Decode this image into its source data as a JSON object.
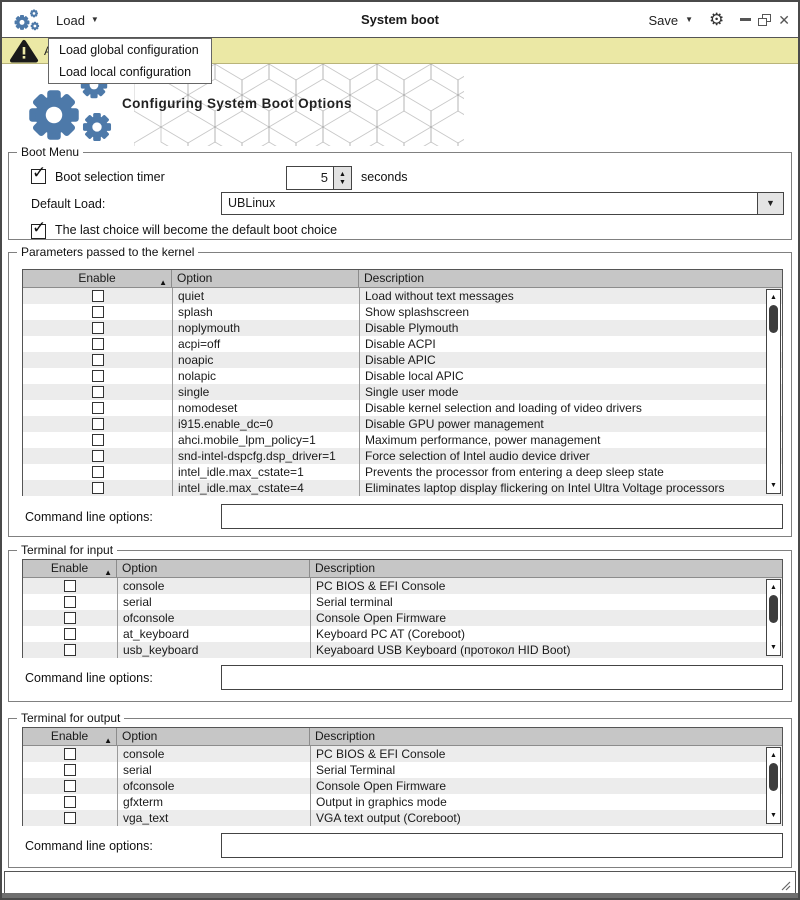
{
  "titlebar": {
    "load_label": "Load",
    "title": "System boot",
    "save_label": "Save"
  },
  "load_menu": {
    "items": [
      {
        "label": "Load global configuration"
      },
      {
        "label": "Load local configuration"
      }
    ]
  },
  "alert_bar": {
    "visible_text": "A"
  },
  "hero": {
    "title": "Configuring System Boot Options"
  },
  "boot_menu": {
    "legend": "Boot Menu",
    "timer": {
      "label": "Boot selection timer",
      "checked": true,
      "value": "5",
      "unit": "seconds"
    },
    "default_load": {
      "label": "Default Load:",
      "value": "UBLinux"
    },
    "last_choice": {
      "label": "The last choice will become the default boot choice",
      "checked": true
    }
  },
  "kernel_params": {
    "legend": "Parameters passed to the kernel",
    "columns": {
      "enable": "Enable",
      "option": "Option",
      "description": "Description"
    },
    "rows": [
      {
        "option": "quiet",
        "description": "Load without text messages",
        "checked": false
      },
      {
        "option": "splash",
        "description": "Show splashscreen",
        "checked": false
      },
      {
        "option": "noplymouth",
        "description": "Disable Plymouth",
        "checked": false
      },
      {
        "option": "acpi=off",
        "description": "Disable ACPI",
        "checked": false
      },
      {
        "option": "noapic",
        "description": "Disable APIC",
        "checked": false
      },
      {
        "option": "nolapic",
        "description": "Disable local APIC",
        "checked": false
      },
      {
        "option": "single",
        "description": "Single user mode",
        "checked": false
      },
      {
        "option": "nomodeset",
        "description": "Disable kernel selection and loading of video drivers",
        "checked": false
      },
      {
        "option": "i915.enable_dc=0",
        "description": "Disable GPU power management",
        "checked": false
      },
      {
        "option": "ahci.mobile_lpm_policy=1",
        "description": "Maximum performance, power management",
        "checked": false
      },
      {
        "option": "snd-intel-dspcfg.dsp_driver=1",
        "description": "Force selection of Intel audio device driver",
        "checked": false
      },
      {
        "option": "intel_idle.max_cstate=1",
        "description": "Prevents the processor from entering a deep sleep state",
        "checked": false
      },
      {
        "option": "intel_idle.max_cstate=4",
        "description": "Eliminates laptop display flickering on Intel Ultra Voltage processors",
        "checked": false
      }
    ],
    "cmd": {
      "label": "Command line options:",
      "value": ""
    }
  },
  "terminal_input": {
    "legend": "Terminal for input",
    "columns": {
      "enable": "Enable",
      "option": "Option",
      "description": "Description"
    },
    "rows": [
      {
        "option": "console",
        "description": "PC BIOS & EFI Console",
        "checked": false
      },
      {
        "option": "serial",
        "description": "Serial terminal",
        "checked": false
      },
      {
        "option": "ofconsole",
        "description": "Console Open Firmware",
        "checked": false
      },
      {
        "option": "at_keyboard",
        "description": "Keyboard PC AT (Coreboot)",
        "checked": false
      },
      {
        "option": "usb_keyboard",
        "description": "Keyaboard USB Keyboard (протокол HID Boot)",
        "checked": false
      }
    ],
    "cmd": {
      "label": "Command line options:",
      "value": ""
    }
  },
  "terminal_output": {
    "legend": "Terminal for output",
    "columns": {
      "enable": "Enable",
      "option": "Option",
      "description": "Description"
    },
    "rows": [
      {
        "option": "console",
        "description": "PC BIOS & EFI Console",
        "checked": false
      },
      {
        "option": "serial",
        "description": "Serial Terminal",
        "checked": false
      },
      {
        "option": "ofconsole",
        "description": "Console Open Firmware",
        "checked": false
      },
      {
        "option": "gfxterm",
        "description": "Output in graphics mode",
        "checked": false
      },
      {
        "option": "vga_text",
        "description": "VGA text output (Coreboot)",
        "checked": false
      }
    ],
    "cmd": {
      "label": "Command line options:",
      "value": ""
    }
  },
  "glyphs": {
    "caret_down": "▼",
    "sort_asc": "▲",
    "scroll_up": "▲",
    "scroll_down": "▼",
    "spin_up": "▲",
    "spin_down": "▼",
    "combo_caret": "▼",
    "check": "✓",
    "close": "✕",
    "settings_gear": "⚙"
  },
  "colors": {
    "accent_blue": "#4d79a9",
    "alert_yellow": "#ebe8a5",
    "table_header_gray": "#c6c6c6"
  }
}
